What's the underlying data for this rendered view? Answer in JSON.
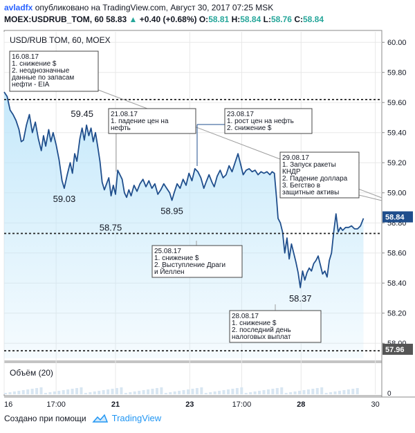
{
  "header": {
    "author": "avladfx",
    "published": "опубликовано на TradingView.com, Август 30, 2017 07:25 MSK",
    "symbol": "MOEX:USDRUB_TOM, 60",
    "last": "58.83",
    "change": "+0.40 (+0.68%)",
    "o_label": "O:",
    "o": "58.81",
    "h_label": "H:",
    "h": "58.84",
    "l_label": "L:",
    "l": "58.76",
    "c_label": "C:",
    "c": "58.84"
  },
  "footer": {
    "created": "Создано при помощи",
    "brand": "TradingView"
  },
  "colors": {
    "line": "#1f4e8c",
    "area": "#bfe6fa",
    "price_tag_bg": "#1f4e8c",
    "tag2_bg": "#555555",
    "grid": "#e8e8e8",
    "up": "#26a69a"
  },
  "chart_data": {
    "type": "area",
    "legend": "USD/RUB TOM, 60, MOEX",
    "ylim": [
      57.9,
      60.07
    ],
    "y_ticks": [
      "60.00",
      "59.80",
      "59.60",
      "59.40",
      "59.20",
      "59.00",
      "58.80",
      "58.60",
      "58.40",
      "58.20",
      "58.00"
    ],
    "x_ticks": [
      {
        "label": "16",
        "pos": 0
      },
      {
        "label": "17:00",
        "pos": 7
      },
      {
        "label": "21",
        "pos": 15
      },
      {
        "label": "23",
        "pos": 25
      },
      {
        "label": "17:00",
        "pos": 32
      },
      {
        "label": "28",
        "pos": 40
      },
      {
        "label": "30",
        "pos": 50
      }
    ],
    "x_end": 50.5,
    "series": [
      {
        "values": [
          [
            0.0,
            59.67
          ],
          [
            0.4,
            59.64
          ],
          [
            0.8,
            59.55
          ],
          [
            1.2,
            59.52
          ],
          [
            1.6,
            59.48
          ],
          [
            2.0,
            59.42
          ],
          [
            2.3,
            59.34
          ],
          [
            2.6,
            59.35
          ],
          [
            3.0,
            59.45
          ],
          [
            3.4,
            59.52
          ],
          [
            3.8,
            59.4
          ],
          [
            4.2,
            59.47
          ],
          [
            4.6,
            59.36
          ],
          [
            5.0,
            59.28
          ],
          [
            5.3,
            59.38
          ],
          [
            5.6,
            59.31
          ],
          [
            6.0,
            59.42
          ],
          [
            6.3,
            59.34
          ],
          [
            6.6,
            59.4
          ],
          [
            7.0,
            59.32
          ],
          [
            7.4,
            59.22
          ],
          [
            7.8,
            59.08
          ],
          [
            8.1,
            59.03
          ],
          [
            8.5,
            59.12
          ],
          [
            8.9,
            59.2
          ],
          [
            9.2,
            59.13
          ],
          [
            9.5,
            59.26
          ],
          [
            9.8,
            59.21
          ],
          [
            10.2,
            59.36
          ],
          [
            10.5,
            59.43
          ],
          [
            10.8,
            59.35
          ],
          [
            11.1,
            59.45
          ],
          [
            11.4,
            59.38
          ],
          [
            11.7,
            59.43
          ],
          [
            12.0,
            59.34
          ],
          [
            12.3,
            59.4
          ],
          [
            12.6,
            59.31
          ],
          [
            12.9,
            59.21
          ],
          [
            13.2,
            59.07
          ],
          [
            13.5,
            59.02
          ],
          [
            13.8,
            59.06
          ],
          [
            14.1,
            59.1
          ],
          [
            14.4,
            58.98
          ],
          [
            14.7,
            59.05
          ],
          [
            15.0,
            58.99
          ],
          [
            15.3,
            59.15
          ],
          [
            15.6,
            59.12
          ],
          [
            15.9,
            59.09
          ],
          [
            16.2,
            59.0
          ],
          [
            16.5,
            58.97
          ],
          [
            16.8,
            59.02
          ],
          [
            17.1,
            58.98
          ],
          [
            17.5,
            59.05
          ],
          [
            17.9,
            59.01
          ],
          [
            18.3,
            59.06
          ],
          [
            18.7,
            59.09
          ],
          [
            19.1,
            59.04
          ],
          [
            19.5,
            59.08
          ],
          [
            19.9,
            59.03
          ],
          [
            20.3,
            59.06
          ],
          [
            20.7,
            58.99
          ],
          [
            21.1,
            59.02
          ],
          [
            21.5,
            59.06
          ],
          [
            21.9,
            59.03
          ],
          [
            22.3,
            59.0
          ],
          [
            22.6,
            58.95
          ],
          [
            22.9,
            59.0
          ],
          [
            23.3,
            59.06
          ],
          [
            23.7,
            59.03
          ],
          [
            24.1,
            59.09
          ],
          [
            24.5,
            59.05
          ],
          [
            24.9,
            59.13
          ],
          [
            25.3,
            59.08
          ],
          [
            25.7,
            59.16
          ],
          [
            26.1,
            59.14
          ],
          [
            26.5,
            59.1
          ],
          [
            26.9,
            59.03
          ],
          [
            27.2,
            59.07
          ],
          [
            27.6,
            59.12
          ],
          [
            28.0,
            59.07
          ],
          [
            28.3,
            59.04
          ],
          [
            28.7,
            59.11
          ],
          [
            29.1,
            59.15
          ],
          [
            29.5,
            59.1
          ],
          [
            29.9,
            59.12
          ],
          [
            30.3,
            59.18
          ],
          [
            30.7,
            59.14
          ],
          [
            31.1,
            59.2
          ],
          [
            31.5,
            59.26
          ],
          [
            31.9,
            59.18
          ],
          [
            32.2,
            59.12
          ],
          [
            32.6,
            59.15
          ],
          [
            33.0,
            59.16
          ],
          [
            33.4,
            59.14
          ],
          [
            33.8,
            59.15
          ],
          [
            34.2,
            59.12
          ],
          [
            34.6,
            59.14
          ],
          [
            35.0,
            59.13
          ],
          [
            35.4,
            59.14
          ],
          [
            35.8,
            59.12
          ],
          [
            36.1,
            59.14
          ],
          [
            36.4,
            59.13
          ],
          [
            36.7,
            58.96
          ],
          [
            36.9,
            58.83
          ],
          [
            37.2,
            58.8
          ],
          [
            37.5,
            58.74
          ],
          [
            37.8,
            58.6
          ],
          [
            38.1,
            58.7
          ],
          [
            38.4,
            58.56
          ],
          [
            38.7,
            58.66
          ],
          [
            39.0,
            58.6
          ],
          [
            39.3,
            58.54
          ],
          [
            39.6,
            58.47
          ],
          [
            39.9,
            58.37
          ],
          [
            40.2,
            58.48
          ],
          [
            40.5,
            58.42
          ],
          [
            40.8,
            58.47
          ],
          [
            41.1,
            58.5
          ],
          [
            41.4,
            58.48
          ],
          [
            41.7,
            58.53
          ],
          [
            42.0,
            58.55
          ],
          [
            42.3,
            58.58
          ],
          [
            42.6,
            58.52
          ],
          [
            42.9,
            58.46
          ],
          [
            43.2,
            58.48
          ],
          [
            43.5,
            58.44
          ],
          [
            43.8,
            58.55
          ],
          [
            44.1,
            58.6
          ],
          [
            44.4,
            58.74
          ],
          [
            44.7,
            58.86
          ],
          [
            45.0,
            58.74
          ],
          [
            45.3,
            58.77
          ],
          [
            45.6,
            58.75
          ],
          [
            46.0,
            58.77
          ],
          [
            46.4,
            58.77
          ],
          [
            46.8,
            58.78
          ],
          [
            47.2,
            58.76
          ],
          [
            47.6,
            58.76
          ],
          [
            48.0,
            58.78
          ],
          [
            48.4,
            58.83
          ]
        ]
      }
    ],
    "hlines": [
      {
        "value": 59.62
      },
      {
        "value": 58.73
      }
    ],
    "bottom_line_value": 57.95,
    "point_labels": [
      {
        "text": "59.45",
        "x": 10.5,
        "y": 59.45,
        "pos": "above"
      },
      {
        "text": "59.03",
        "x": 8.1,
        "y": 59.03,
        "pos": "below"
      },
      {
        "text": "58.95",
        "x": 22.6,
        "y": 58.95,
        "pos": "below"
      },
      {
        "text": "58.75",
        "x": 15.3,
        "y": 58.75,
        "pos": "plain"
      },
      {
        "text": "58.37",
        "x": 39.9,
        "y": 58.37,
        "pos": "below"
      }
    ],
    "price_tags": [
      {
        "value": 58.84,
        "text": "58.84",
        "style": "main"
      },
      {
        "value": 57.96,
        "text": "57.96",
        "style": "alt"
      }
    ],
    "hidden_tick_partial": [
      "58.80",
      "57.90"
    ],
    "annotations": [
      {
        "lines": [
          "16.08.17",
          "1. снижение $",
          "2. неоднозначные",
          "данные по запасам",
          "нефти - EIA"
        ],
        "anchor_x": 0.5,
        "anchor_y": 59.63,
        "target_x": 22.0,
        "target_y": 59.5
      },
      {
        "lines": [
          "21.08.17",
          "1. падение цен на",
          "нефть"
        ],
        "anchor_x": 15.2,
        "anchor_y": 59.51,
        "target_x": 15.2,
        "target_y": 59.18
      },
      {
        "lines": [
          "23.08.17",
          "1. рост цен на нефть",
          "2. снижение $"
        ],
        "anchor_x": 31.5,
        "anchor_y": 59.42,
        "target_x": 27.0,
        "target_y": 59.22
      },
      {
        "lines": [
          "29.08.17",
          "1. Запуск ракеты",
          "КНДР",
          "2. Падение доллара",
          "3. Бегство в",
          "защитные активы"
        ],
        "anchor_x": 50.5,
        "anchor_y": 59.02,
        "target_x": 51.9,
        "target_y": 59.02
      },
      {
        "lines": [
          "25.08.17",
          "1. снижение $",
          "2. Выступление Драги",
          "и Йеллен"
        ],
        "anchor_x": 37.6,
        "anchor_y": 58.7,
        "target_x": 37.6,
        "target_y": 58.7
      },
      {
        "lines": [
          "28.08.17",
          "1. снижение $",
          "2. последний день",
          "налоговых выплат"
        ],
        "anchor_x": 39.9,
        "anchor_y": 58.35,
        "target_x": 39.9,
        "target_y": 58.3
      }
    ],
    "volume": {
      "label": "Объём",
      "value": "(20)",
      "tick": "0"
    }
  }
}
